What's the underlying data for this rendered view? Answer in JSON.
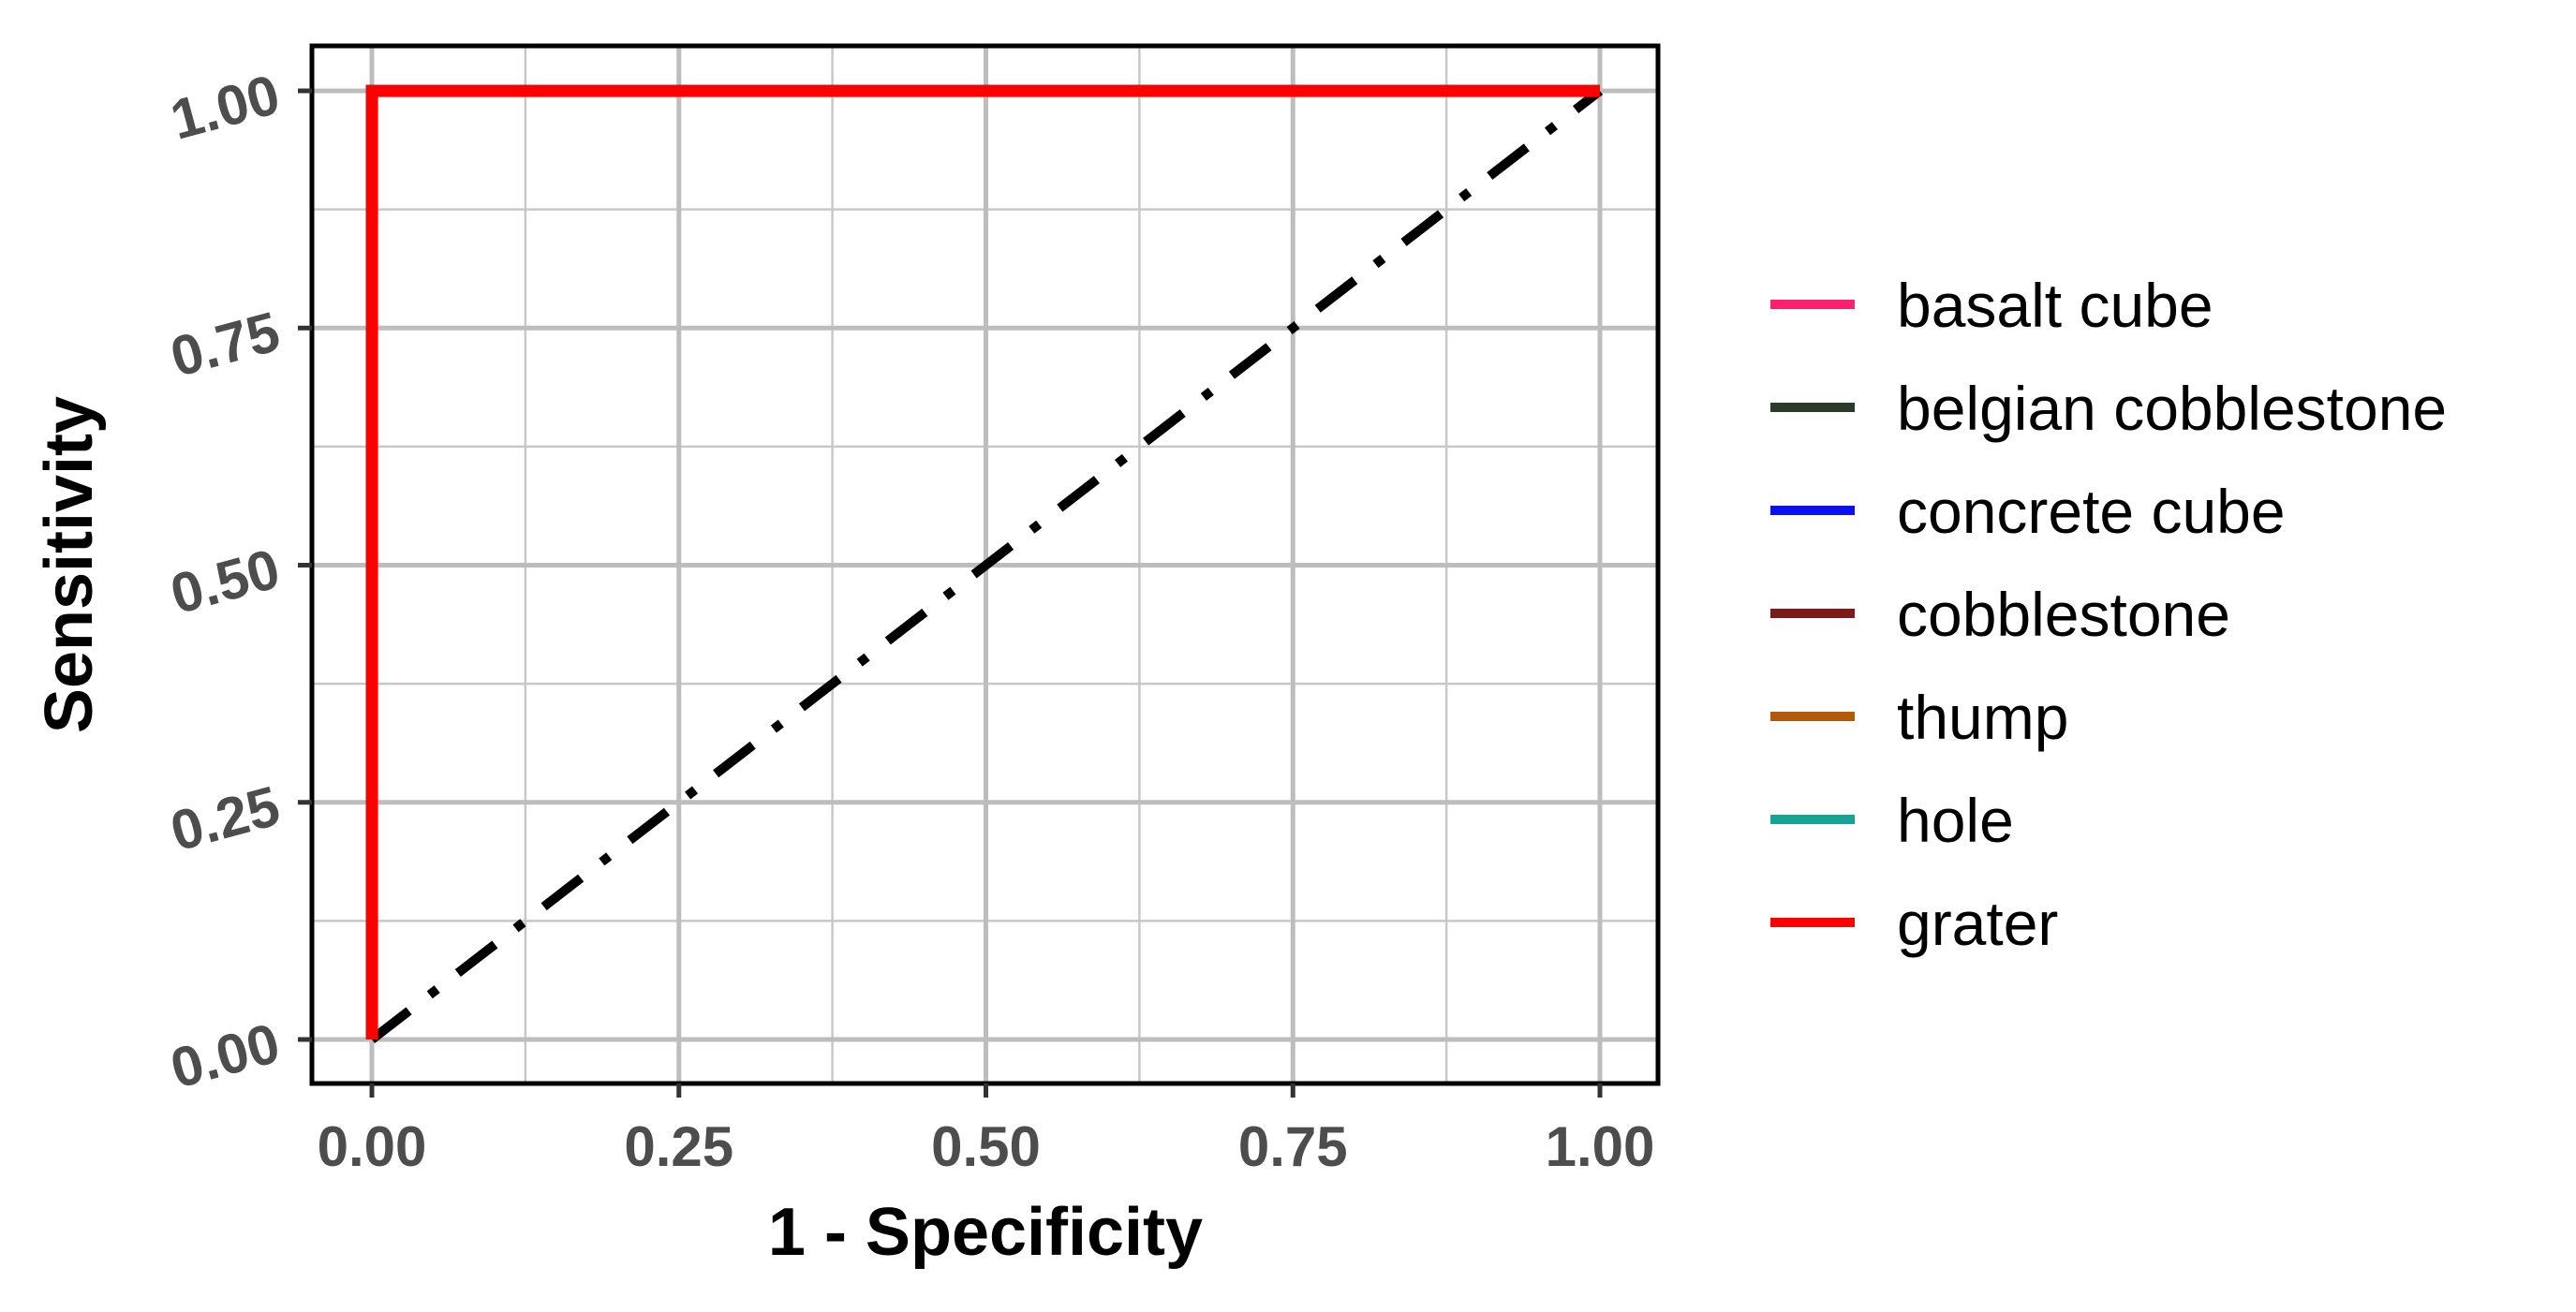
{
  "chart_data": {
    "type": "line",
    "xlabel": "1 - Specificity",
    "ylabel": "Sensitivity",
    "xlim": [
      0,
      1
    ],
    "ylim": [
      0,
      1
    ],
    "x_ticks": [
      "0.00",
      "0.25",
      "0.50",
      "0.75",
      "1.00"
    ],
    "y_ticks": [
      "0.00",
      "0.25",
      "0.50",
      "0.75",
      "1.00"
    ],
    "grid": true,
    "legend_position": "right",
    "series": [
      {
        "name": "basalt cube",
        "color": "#ff1f6f",
        "x": [
          0,
          0,
          1
        ],
        "y": [
          0,
          1,
          1
        ]
      },
      {
        "name": "belgian cobblestone",
        "color": "#2b3a2b",
        "x": [
          0,
          0,
          1
        ],
        "y": [
          0,
          1,
          1
        ]
      },
      {
        "name": "concrete cube",
        "color": "#0a10f0",
        "x": [
          0,
          0,
          1
        ],
        "y": [
          0,
          1,
          1
        ]
      },
      {
        "name": "cobblestone",
        "color": "#7a1a1a",
        "x": [
          0,
          0,
          1
        ],
        "y": [
          0,
          1,
          1
        ]
      },
      {
        "name": "thump",
        "color": "#b35a0a",
        "x": [
          0,
          0,
          1
        ],
        "y": [
          0,
          1,
          1
        ]
      },
      {
        "name": "hole",
        "color": "#16a594",
        "x": [
          0,
          0,
          1
        ],
        "y": [
          0,
          1,
          1
        ]
      },
      {
        "name": "grater",
        "color": "#ff0000",
        "x": [
          0,
          0,
          1
        ],
        "y": [
          0,
          1,
          1
        ]
      }
    ],
    "reference_line": {
      "x": [
        0,
        1
      ],
      "y": [
        0,
        1
      ],
      "style": "dash-dot",
      "color": "#000000"
    }
  }
}
